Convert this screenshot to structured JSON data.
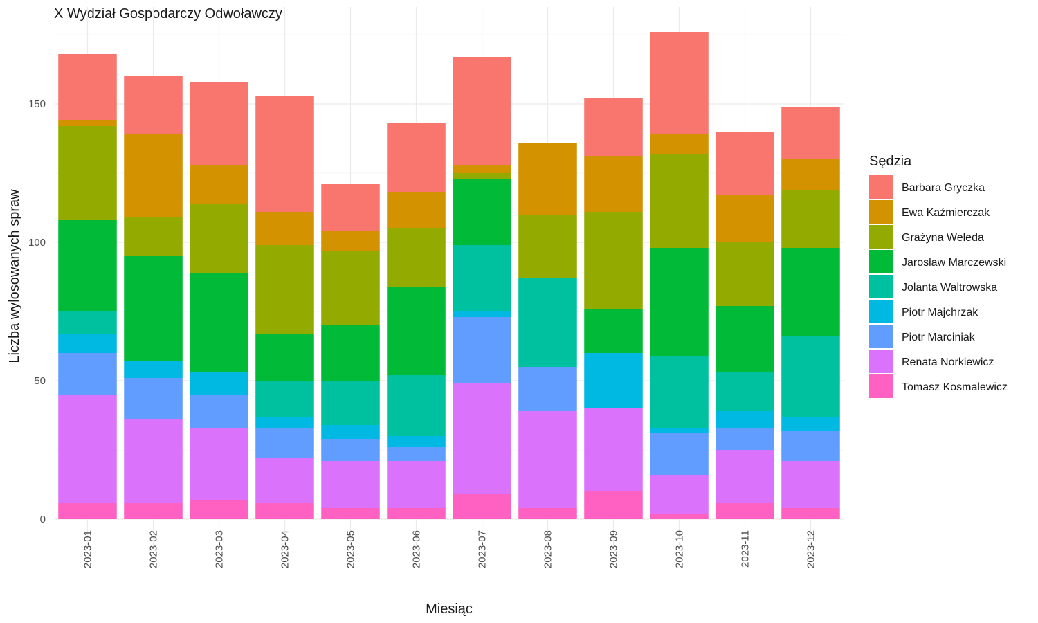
{
  "chart_data": {
    "type": "bar",
    "stacked": true,
    "title": "X Wydział Gospodarczy Odwoławczy",
    "xlabel": "Miesiąc",
    "ylabel": "Liczba wylosowanych spraw",
    "ylim": [
      0,
      185
    ],
    "yticks": [
      0,
      50,
      100,
      150
    ],
    "grid": true,
    "legend_title": "Sędzia",
    "legend_position": "right",
    "categories": [
      "2023-01",
      "2023-02",
      "2023-03",
      "2023-04",
      "2023-05",
      "2023-06",
      "2023-07",
      "2023-08",
      "2023-09",
      "2023-10",
      "2023-11",
      "2023-12"
    ],
    "series": [
      {
        "name": "Tomasz Kosmalewicz",
        "color": "#FF61C3",
        "values": [
          6,
          6,
          7,
          6,
          4,
          4,
          9,
          4,
          10,
          2,
          6,
          4
        ]
      },
      {
        "name": "Renata Norkiewicz",
        "color": "#DB72FB",
        "values": [
          39,
          30,
          26,
          16,
          17,
          17,
          40,
          35,
          30,
          14,
          19,
          17
        ]
      },
      {
        "name": "Piotr Marciniak",
        "color": "#619CFF",
        "values": [
          15,
          15,
          12,
          11,
          8,
          5,
          24,
          16,
          0,
          15,
          8,
          11
        ]
      },
      {
        "name": "Piotr Majchrzak",
        "color": "#00B9E3",
        "values": [
          7,
          6,
          8,
          4,
          5,
          4,
          2,
          0,
          20,
          2,
          6,
          5
        ]
      },
      {
        "name": "Jolanta Waltrowska",
        "color": "#00C19F",
        "values": [
          8,
          0,
          0,
          13,
          16,
          22,
          24,
          32,
          0,
          26,
          14,
          29
        ]
      },
      {
        "name": "Jarosław Marczewski",
        "color": "#00BA38",
        "values": [
          33,
          38,
          36,
          17,
          20,
          32,
          24,
          0,
          16,
          39,
          24,
          32
        ]
      },
      {
        "name": "Grażyna Weleda",
        "color": "#93AA00",
        "values": [
          34,
          14,
          25,
          32,
          27,
          21,
          2,
          23,
          35,
          34,
          23,
          21
        ]
      },
      {
        "name": "Ewa Kaźmierczak",
        "color": "#D39200",
        "values": [
          2,
          30,
          14,
          12,
          7,
          13,
          3,
          26,
          20,
          7,
          17,
          11
        ]
      },
      {
        "name": "Barbara Gryczka",
        "color": "#F8766D",
        "values": [
          24,
          21,
          30,
          42,
          17,
          25,
          39,
          0,
          21,
          37,
          23,
          19
        ]
      }
    ]
  }
}
